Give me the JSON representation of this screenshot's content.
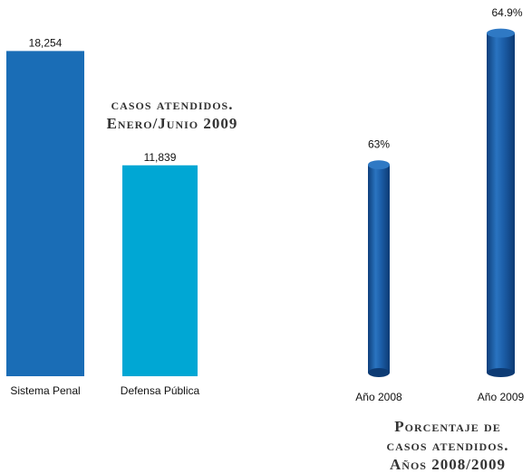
{
  "chart_data": [
    {
      "type": "bar",
      "title": [
        "casos atendidos.",
        "Enero/Junio 2009"
      ],
      "categories": [
        "Sistema Penal",
        "Defensa Pública"
      ],
      "values": [
        18254,
        11839
      ],
      "value_labels": [
        "18,254",
        "11,839"
      ],
      "colors": [
        "#1a6db6",
        "#00a7d4"
      ],
      "ylim": [
        0,
        20000
      ]
    },
    {
      "type": "cylinder",
      "title": [
        "Porcentaje de",
        "casos atendidos.",
        "Años 2008/2009"
      ],
      "categories": [
        "Año 2008",
        "Año 2009"
      ],
      "values": [
        63,
        64.9
      ],
      "value_labels": [
        "63%",
        "64.9%"
      ],
      "color": "#1c5ea8",
      "ylim": [
        60,
        65
      ]
    }
  ]
}
